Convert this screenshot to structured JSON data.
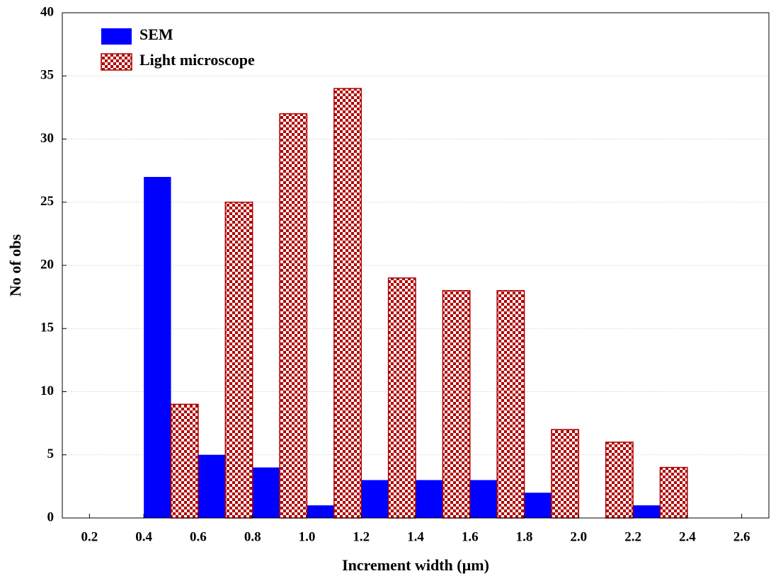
{
  "chart_data": {
    "type": "histogram",
    "x_label": "Increment width (µm)",
    "y_label": "No of obs",
    "bins": [
      0.4,
      0.6,
      0.8,
      1.0,
      1.2,
      1.4,
      1.6,
      1.8,
      2.0,
      2.2,
      2.4
    ],
    "series": [
      {
        "name": "SEM",
        "color": "#0000ff",
        "values": [
          27,
          5,
          4,
          1,
          3,
          3,
          3,
          2,
          0,
          1
        ]
      },
      {
        "name": "Light microscope",
        "color": "#b00000",
        "values": [
          9,
          25,
          32,
          34,
          19,
          18,
          18,
          7,
          6,
          4
        ]
      }
    ],
    "xlim": [
      0.1,
      2.7
    ],
    "xticks": [
      0.2,
      0.4,
      0.6,
      0.8,
      {
        "value": 1,
        "label": "1.0"
      },
      1.2,
      1.4,
      1.6,
      1.8,
      {
        "value": 2,
        "label": "2.0"
      },
      2.2,
      2.4,
      2.6
    ],
    "ylim": [
      0,
      40
    ],
    "yticks": [
      0,
      5,
      10,
      15,
      20,
      25,
      30,
      35,
      40
    ],
    "grid": true,
    "legend": "upper left"
  }
}
